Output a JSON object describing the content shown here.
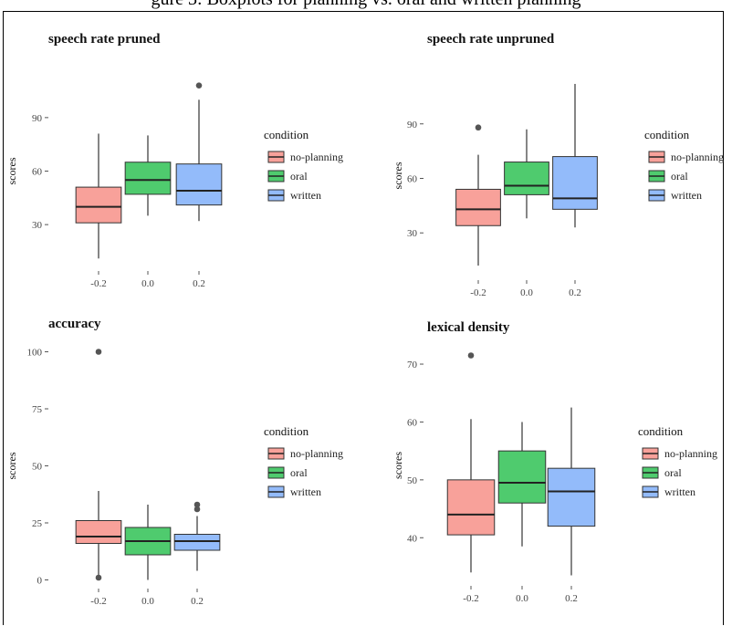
{
  "figure": {
    "header_fragment": "gure 3: Boxplots for planning vs. oral and written planning"
  },
  "colors": {
    "no_planning": "#F8A19A",
    "oral": "#4FCB6E",
    "written": "#93BBFA",
    "median": "#222222",
    "whisker": "#333333",
    "outlier": "#555555"
  },
  "legend_defaults": {
    "title": "condition",
    "entries": [
      "no-planning",
      "oral",
      "written"
    ]
  },
  "chart_data": [
    {
      "type": "boxplot",
      "title": "speech rate pruned",
      "ylabel": "scores",
      "xlabel": "",
      "x_ticks": [
        "-0.2",
        "0.0",
        "0.2"
      ],
      "y_ticks": [
        30,
        60,
        90
      ],
      "ylim": [
        5,
        115
      ],
      "legend": {
        "title": "condition",
        "entries": [
          "no-planning",
          "oral",
          "written"
        ]
      },
      "series": [
        {
          "name": "no-planning",
          "x": -0.2,
          "min": 11,
          "q1": 31,
          "median": 40,
          "q3": 51,
          "max": 81,
          "outliers": []
        },
        {
          "name": "oral",
          "x": 0.0,
          "min": 35,
          "q1": 47,
          "median": 55,
          "q3": 65,
          "max": 80,
          "outliers": []
        },
        {
          "name": "written",
          "x": 0.2,
          "min": 32,
          "q1": 41,
          "median": 49,
          "q3": 64,
          "max": 100,
          "outliers": [
            108
          ]
        }
      ]
    },
    {
      "type": "boxplot",
      "title": "speech rate unpruned",
      "ylabel": "scores",
      "xlabel": "",
      "x_ticks": [
        "-0.2",
        "0.0",
        "0.2"
      ],
      "y_ticks": [
        30,
        60,
        90
      ],
      "ylim": [
        5,
        118
      ],
      "legend": {
        "title": "condition",
        "entries": [
          "no-planning",
          "oral",
          "written"
        ]
      },
      "series": [
        {
          "name": "no-planning",
          "x": -0.2,
          "min": 12,
          "q1": 34,
          "median": 43,
          "q3": 54,
          "max": 73,
          "outliers": [
            88
          ]
        },
        {
          "name": "oral",
          "x": 0.0,
          "min": 38,
          "q1": 51,
          "median": 56,
          "q3": 69,
          "max": 87,
          "outliers": []
        },
        {
          "name": "written",
          "x": 0.2,
          "min": 33,
          "q1": 43,
          "median": 49,
          "q3": 72,
          "max": 112,
          "outliers": []
        }
      ]
    },
    {
      "type": "boxplot",
      "title": "accuracy",
      "ylabel": "scores",
      "xlabel": "",
      "x_ticks": [
        "-0.2",
        "0.0",
        "0.2"
      ],
      "y_ticks": [
        0,
        25,
        50,
        75,
        100
      ],
      "ylim": [
        -3,
        103
      ],
      "legend": {
        "title": "condition",
        "entries": [
          "no-planning",
          "oral",
          "written"
        ]
      },
      "series": [
        {
          "name": "no-planning",
          "x": -0.2,
          "min": 2,
          "q1": 16,
          "median": 19,
          "q3": 26,
          "max": 39,
          "outliers": [
            100,
            1
          ]
        },
        {
          "name": "oral",
          "x": 0.0,
          "min": 0,
          "q1": 11,
          "median": 17,
          "q3": 23,
          "max": 33,
          "outliers": []
        },
        {
          "name": "written",
          "x": 0.2,
          "min": 4,
          "q1": 13,
          "median": 17,
          "q3": 20,
          "max": 28,
          "outliers": [
            31,
            33
          ]
        }
      ]
    },
    {
      "type": "boxplot",
      "title": "lexical density",
      "ylabel": "scores",
      "xlabel": "",
      "x_ticks": [
        "-0.2",
        "0.0",
        "0.2"
      ],
      "y_ticks": [
        40,
        50,
        60,
        70
      ],
      "ylim": [
        32,
        73
      ],
      "legend": {
        "title": "condition",
        "entries": [
          "no-planning",
          "oral",
          "written"
        ]
      },
      "series": [
        {
          "name": "no-planning",
          "x": -0.2,
          "min": 34,
          "q1": 40.5,
          "median": 44,
          "q3": 50,
          "max": 60.5,
          "outliers": [
            71.5
          ]
        },
        {
          "name": "oral",
          "x": 0.0,
          "min": 38.5,
          "q1": 46,
          "median": 49.5,
          "q3": 55,
          "max": 60,
          "outliers": []
        },
        {
          "name": "written",
          "x": 0.2,
          "min": 33.5,
          "q1": 42,
          "median": 48,
          "q3": 52,
          "max": 62.5,
          "outliers": []
        }
      ]
    }
  ]
}
